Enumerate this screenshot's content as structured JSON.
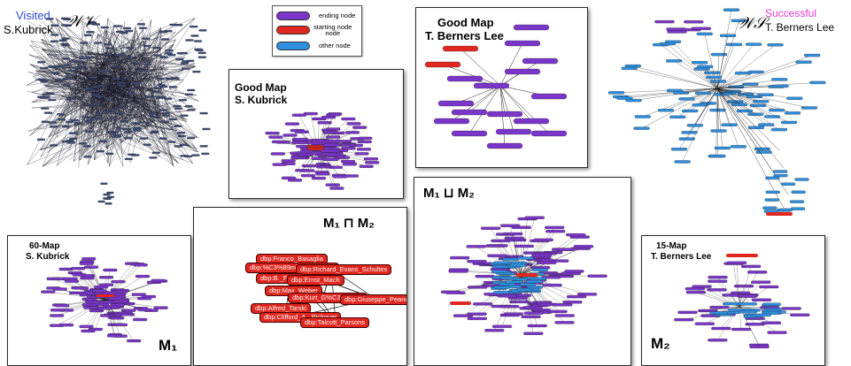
{
  "colors": {
    "ending_node": "#7a35c9",
    "starting_node": "#e0271f",
    "other_node": "#2e8fe0",
    "edge": "#222222",
    "visited_label": "#2b4bd6",
    "successful_label": "#e43ad1"
  },
  "legend": {
    "ending": "ending node",
    "starting_line1": "starting node",
    "starting_line2": "node",
    "other": "other node"
  },
  "top_left": {
    "status": "Visited",
    "name": "S.Kubrick",
    "symbol": "𝒲𝒱"
  },
  "top_right": {
    "status": "Successful",
    "name": "T. Berners Lee",
    "symbol": "𝒲𝒮"
  },
  "good_map_kubrick": {
    "line1": "Good Map",
    "line2": "S. Kubrick"
  },
  "good_map_berners": {
    "line1": "Good Map",
    "line2": "T. Berners Lee"
  },
  "map60": {
    "line1": "60-Map",
    "line2": "S. Kubrick",
    "tag": "M₁"
  },
  "map15": {
    "line1": "15-Map",
    "line2": "T. Berners Lee",
    "tag": "M₂"
  },
  "intersection": {
    "label": "M₁ ⊓ M₂"
  },
  "union": {
    "label": "M₁ ⊔ M₂"
  },
  "intersection_nodes": [
    "dbp:Franco_Basaglia",
    "dbp:%C3%89mile_Durkheim",
    "dbp:Richard_Evans_Schultes",
    "dbp:B._F._Sk",
    "dbp:Ernst_Mach",
    "dbp:Max_Weber",
    "dbp:Kurt_G%C3%B6del",
    "dbp:Giuseppe_Peano",
    "dbp:Alfred_Tarski",
    "dbp:Clifford_A._Pickover",
    "dbp:Talcott_Parsons"
  ]
}
